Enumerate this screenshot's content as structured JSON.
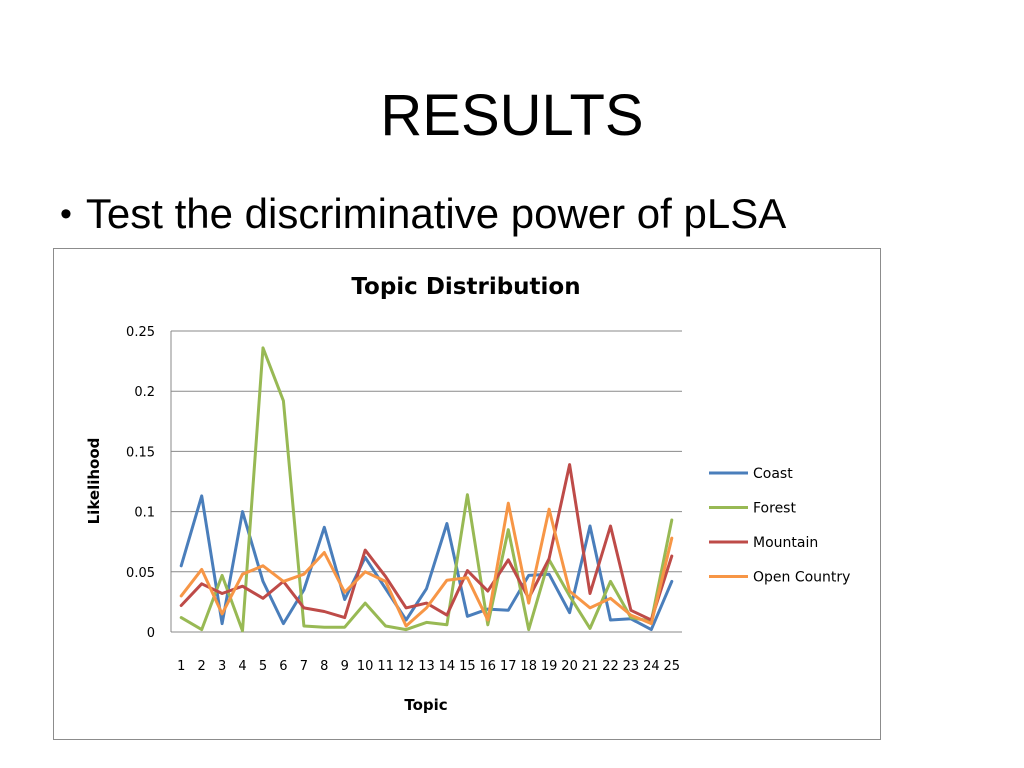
{
  "slide": {
    "title": "RESULTS",
    "bullet": "Test the discriminative power of pLSA",
    "bullet_symbol": "•"
  },
  "chart_data": {
    "type": "line",
    "title": "Topic Distribution",
    "xlabel": "Topic",
    "ylabel": "Likelihood",
    "x": [
      1,
      2,
      3,
      4,
      5,
      6,
      7,
      8,
      9,
      10,
      11,
      12,
      13,
      14,
      15,
      16,
      17,
      18,
      19,
      20,
      21,
      22,
      23,
      24,
      25
    ],
    "ylim": [
      0,
      0.25
    ],
    "yticks": [
      0,
      0.05,
      0.1,
      0.15,
      0.2,
      0.25
    ],
    "ytick_labels": [
      "0",
      "0.05",
      "0.1",
      "0.15",
      "0.2",
      "0.25"
    ],
    "grid": true,
    "legend_position": "right",
    "series": [
      {
        "name": "Coast",
        "color": "#4a7ebb",
        "values": [
          0.055,
          0.113,
          0.007,
          0.1,
          0.042,
          0.007,
          0.035,
          0.087,
          0.027,
          0.062,
          0.036,
          0.01,
          0.036,
          0.09,
          0.013,
          0.019,
          0.018,
          0.047,
          0.048,
          0.016,
          0.088,
          0.01,
          0.011,
          0.002,
          0.042
        ]
      },
      {
        "name": "Forest",
        "color": "#98b954",
        "values": [
          0.012,
          0.002,
          0.047,
          0.001,
          0.236,
          0.192,
          0.005,
          0.004,
          0.004,
          0.024,
          0.005,
          0.002,
          0.008,
          0.006,
          0.114,
          0.006,
          0.085,
          0.002,
          0.06,
          0.03,
          0.003,
          0.042,
          0.012,
          0.009,
          0.093
        ]
      },
      {
        "name": "Mountain",
        "color": "#be4b48",
        "values": [
          0.022,
          0.04,
          0.032,
          0.038,
          0.028,
          0.042,
          0.02,
          0.017,
          0.012,
          0.068,
          0.046,
          0.02,
          0.024,
          0.014,
          0.051,
          0.034,
          0.06,
          0.028,
          0.061,
          0.139,
          0.032,
          0.088,
          0.018,
          0.01,
          0.063
        ]
      },
      {
        "name": "Open Country",
        "color": "#f79646",
        "values": [
          0.03,
          0.052,
          0.015,
          0.048,
          0.055,
          0.042,
          0.048,
          0.066,
          0.033,
          0.05,
          0.042,
          0.005,
          0.02,
          0.043,
          0.045,
          0.01,
          0.107,
          0.024,
          0.102,
          0.034,
          0.02,
          0.028,
          0.014,
          0.007,
          0.078
        ]
      }
    ]
  }
}
